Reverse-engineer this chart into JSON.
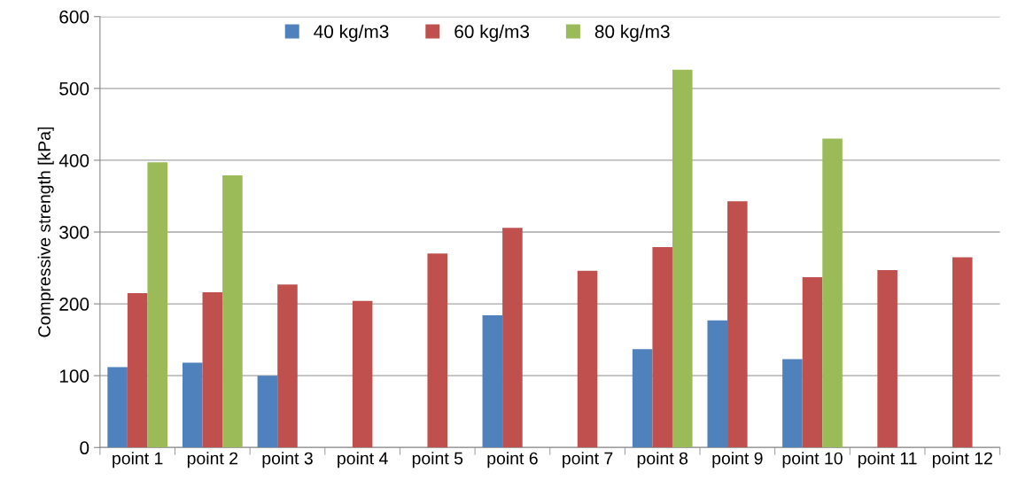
{
  "chart_data": {
    "type": "bar",
    "ylabel": "Compressive strength [kPa]",
    "categories": [
      "point 1",
      "point 2",
      "point 3",
      "point 4",
      "point 5",
      "point 6",
      "point 7",
      "point 8",
      "point 9",
      "point 10",
      "point 11",
      "point 12"
    ],
    "series": [
      {
        "name": "40 kg/m3",
        "color": "#4f81bd",
        "values": [
          112,
          118,
          100,
          null,
          null,
          184,
          null,
          137,
          177,
          123,
          null,
          null
        ]
      },
      {
        "name": "60 kg/m3",
        "color": "#c0504d",
        "values": [
          215,
          216,
          227,
          204,
          270,
          306,
          246,
          279,
          343,
          237,
          247,
          265
        ]
      },
      {
        "name": "80 kg/m3",
        "color": "#9bbb59",
        "values": [
          397,
          379,
          null,
          null,
          null,
          null,
          null,
          526,
          null,
          430,
          null,
          null
        ]
      }
    ],
    "ylim": [
      0,
      600
    ],
    "yticks": [
      0,
      100,
      200,
      300,
      400,
      500,
      600
    ],
    "grid": "y",
    "legend": "top"
  }
}
